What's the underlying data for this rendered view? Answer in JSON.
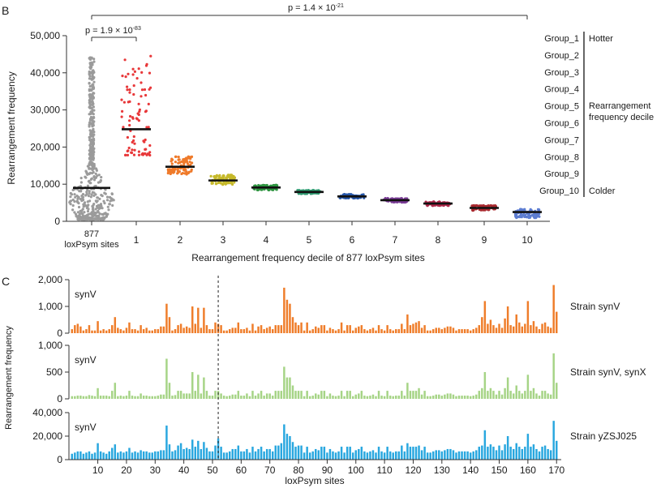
{
  "panel_b": {
    "label": "B",
    "ylabel": "Rearrangement frequency",
    "xlabel": "Rearrangement frequency decile of 877 loxPsym sites",
    "y_ticks": [
      "0",
      "10,000",
      "20,000",
      "30,000",
      "40,000",
      "50,000"
    ],
    "x_tick_first_line1": "877",
    "x_tick_first_line2": "loxPsym sites",
    "sig_short": {
      "prefix": "p = 1.9 × 10",
      "exp": "-83"
    },
    "sig_long": {
      "prefix": "p = 1.4 × 10",
      "exp": "-21"
    },
    "legend_groups": [
      "Group_1",
      "Group_2",
      "Group_3",
      "Group_4",
      "Group_5",
      "Group_6",
      "Group_7",
      "Group_8",
      "Group_9",
      "Group_10"
    ],
    "legend_hotter": "Hotter",
    "legend_decile_line1": "Rearrangement",
    "legend_decile_line2": "frequency decile",
    "legend_colder": "Colder"
  },
  "panel_c": {
    "label": "C",
    "ylabel": "Rearrangement frequency",
    "xlabel": "loxPsym sites",
    "x_ticks": [
      "10",
      "20",
      "30",
      "40",
      "50",
      "60",
      "70",
      "80",
      "90",
      "100",
      "110",
      "120",
      "130",
      "140",
      "150",
      "160",
      "170"
    ],
    "rows": [
      {
        "tag": "synV",
        "strain": "Strain synV",
        "ticks": [
          "0",
          "1,000",
          "2,000"
        ]
      },
      {
        "tag": "synV",
        "strain": "Strain synV, synX",
        "ticks": [
          "0",
          "500",
          "1,000"
        ]
      },
      {
        "tag": "synV",
        "strain": "Strain yZSJ025",
        "ticks": [
          "0",
          "20,000",
          "40,000"
        ]
      }
    ]
  },
  "chart_data": [
    {
      "type": "scatter",
      "panel": "B",
      "title": "",
      "xlabel": "Rearrangement frequency decile of 877 loxPsym sites",
      "ylabel": "Rearrangement frequency",
      "ylim": [
        0,
        50000
      ],
      "categories": [
        "877 loxPsym sites",
        "1",
        "2",
        "3",
        "4",
        "5",
        "6",
        "7",
        "8",
        "9",
        "10"
      ],
      "colors": [
        "#9b9b9b",
        "#e8383a",
        "#ef7a2a",
        "#c6b92a",
        "#2e9440",
        "#2e9a70",
        "#2656a8",
        "#7a3c96",
        "#b0284a",
        "#a8282e",
        "#5c7cd0"
      ],
      "series": [
        {
          "name": "877 loxPsym sites",
          "median": 9000,
          "min": 500,
          "max": 44500,
          "n": 877
        },
        {
          "name": "Group_1",
          "median": 24800,
          "min": 17800,
          "max": 44500,
          "n": 88
        },
        {
          "name": "Group_2",
          "median": 14700,
          "min": 12600,
          "max": 17500,
          "n": 88
        },
        {
          "name": "Group_3",
          "median": 11000,
          "min": 9900,
          "max": 12500,
          "n": 88
        },
        {
          "name": "Group_4",
          "median": 9100,
          "min": 8400,
          "max": 9800,
          "n": 88
        },
        {
          "name": "Group_5",
          "median": 7900,
          "min": 7400,
          "max": 8400,
          "n": 88
        },
        {
          "name": "Group_6",
          "median": 6700,
          "min": 6200,
          "max": 7300,
          "n": 88
        },
        {
          "name": "Group_7",
          "median": 5700,
          "min": 5100,
          "max": 6200,
          "n": 88
        },
        {
          "name": "Group_8",
          "median": 4800,
          "min": 4200,
          "max": 5300,
          "n": 88
        },
        {
          "name": "Group_9",
          "median": 3600,
          "min": 2900,
          "max": 4300,
          "n": 88
        },
        {
          "name": "Group_10",
          "median": 2500,
          "min": 900,
          "max": 3300,
          "n": 85
        }
      ],
      "annotations": [
        {
          "text": "p = 1.9 × 10^-83",
          "between": [
            "877 loxPsym sites",
            "1"
          ]
        },
        {
          "text": "p = 1.4 × 10^-21",
          "between": [
            "877 loxPsym sites",
            "10"
          ]
        }
      ]
    },
    {
      "type": "bar",
      "panel": "C",
      "xlabel": "loxPsym sites",
      "ylabel": "Rearrangement frequency",
      "xlim": [
        1,
        170
      ],
      "marker_site": 52,
      "series": [
        {
          "name": "Strain synV",
          "color": "#ef7d2a",
          "ylim": [
            0,
            2000
          ],
          "values": [
            150,
            300,
            350,
            250,
            100,
            150,
            300,
            100,
            100,
            450,
            100,
            150,
            100,
            150,
            300,
            600,
            200,
            150,
            100,
            200,
            400,
            150,
            150,
            100,
            300,
            150,
            200,
            100,
            100,
            150,
            150,
            250,
            250,
            1100,
            600,
            100,
            150,
            300,
            350,
            200,
            250,
            200,
            1000,
            350,
            950,
            200,
            950,
            300,
            150,
            150,
            400,
            350,
            300,
            100,
            100,
            150,
            200,
            200,
            400,
            150,
            150,
            200,
            100,
            350,
            100,
            250,
            300,
            150,
            200,
            250,
            150,
            300,
            300,
            300,
            1700,
            1250,
            1100,
            600,
            400,
            300,
            400,
            100,
            400,
            100,
            150,
            250,
            200,
            300,
            300,
            100,
            200,
            150,
            100,
            150,
            400,
            100,
            300,
            300,
            100,
            200,
            250,
            300,
            150,
            100,
            150,
            200,
            100,
            300,
            150,
            100,
            300,
            150,
            100,
            150,
            150,
            350,
            150,
            700,
            300,
            350,
            400,
            450,
            200,
            300,
            100,
            100,
            150,
            200,
            200,
            150,
            200,
            250,
            250,
            200,
            100,
            150,
            150,
            150,
            150,
            100,
            150,
            200,
            300,
            600,
            1200,
            350,
            500,
            300,
            200,
            350,
            200,
            550,
            1000,
            300,
            250,
            700,
            400,
            250,
            350,
            1200,
            300,
            450,
            250,
            150,
            350,
            400,
            250,
            200,
            1800,
            800
          ]
        },
        {
          "name": "Strain synV, synX",
          "color": "#a6d486",
          "ylim": [
            0,
            1000
          ],
          "values": [
            50,
            50,
            60,
            60,
            50,
            50,
            70,
            60,
            50,
            200,
            60,
            60,
            60,
            50,
            150,
            300,
            50,
            60,
            50,
            60,
            150,
            60,
            50,
            50,
            100,
            60,
            60,
            50,
            50,
            50,
            60,
            80,
            80,
            750,
            300,
            60,
            70,
            150,
            150,
            100,
            100,
            100,
            500,
            150,
            450,
            100,
            400,
            150,
            60,
            60,
            150,
            150,
            100,
            60,
            50,
            60,
            80,
            80,
            150,
            60,
            60,
            100,
            50,
            150,
            60,
            100,
            150,
            60,
            100,
            100,
            60,
            150,
            150,
            150,
            600,
            400,
            400,
            250,
            150,
            150,
            150,
            50,
            150,
            50,
            60,
            100,
            80,
            150,
            150,
            50,
            100,
            60,
            50,
            60,
            150,
            50,
            150,
            150,
            50,
            80,
            100,
            150,
            60,
            50,
            60,
            80,
            50,
            150,
            60,
            50,
            150,
            60,
            50,
            60,
            60,
            150,
            60,
            300,
            150,
            150,
            150,
            200,
            80,
            150,
            50,
            50,
            60,
            80,
            80,
            60,
            80,
            100,
            100,
            80,
            50,
            60,
            60,
            60,
            60,
            50,
            60,
            80,
            150,
            200,
            500,
            150,
            200,
            150,
            80,
            150,
            80,
            200,
            400,
            150,
            100,
            250,
            150,
            100,
            150,
            450,
            150,
            200,
            100,
            60,
            150,
            150,
            100,
            80,
            850,
            300
          ]
        },
        {
          "name": "Strain yZSJ025",
          "color": "#29a7df",
          "ylim": [
            0,
            40000
          ],
          "values": [
            5000,
            6000,
            7000,
            7000,
            5000,
            6000,
            7000,
            5000,
            6000,
            14000,
            7000,
            6000,
            5000,
            7000,
            10000,
            13000,
            6000,
            7000,
            6000,
            7000,
            10000,
            6000,
            7000,
            6000,
            8000,
            7000,
            7000,
            6000,
            6000,
            7000,
            7000,
            8000,
            8000,
            29000,
            13000,
            7000,
            8000,
            12000,
            14000,
            9000,
            10000,
            9000,
            17000,
            11000,
            16000,
            9000,
            15000,
            10000,
            7000,
            7000,
            12000,
            18000,
            11000,
            6000,
            6000,
            7000,
            9000,
            9000,
            12000,
            7000,
            7000,
            9000,
            6000,
            11000,
            7000,
            9000,
            11000,
            7000,
            9000,
            9000,
            7000,
            12000,
            12000,
            14000,
            30000,
            22000,
            20000,
            15000,
            11000,
            12000,
            12000,
            6000,
            11000,
            6000,
            7000,
            9000,
            8000,
            11000,
            11000,
            6000,
            9000,
            7000,
            6000,
            7000,
            11000,
            6000,
            11000,
            11000,
            6000,
            8000,
            9000,
            11000,
            7000,
            6000,
            7000,
            8000,
            6000,
            11000,
            7000,
            6000,
            11000,
            7000,
            6000,
            7000,
            7000,
            12000,
            7000,
            14000,
            11000,
            11000,
            11000,
            12000,
            8000,
            11000,
            6000,
            6000,
            7000,
            8000,
            8000,
            7000,
            8000,
            9000,
            9000,
            8000,
            6000,
            7000,
            7000,
            7000,
            7000,
            6000,
            7000,
            8000,
            11000,
            12000,
            25000,
            11000,
            13000,
            11000,
            8000,
            12000,
            8000,
            13000,
            20000,
            11000,
            9000,
            14000,
            11000,
            9000,
            11000,
            22000,
            11000,
            13000,
            9000,
            7000,
            11000,
            12000,
            9000,
            8000,
            33000,
            16000
          ]
        }
      ]
    }
  ]
}
